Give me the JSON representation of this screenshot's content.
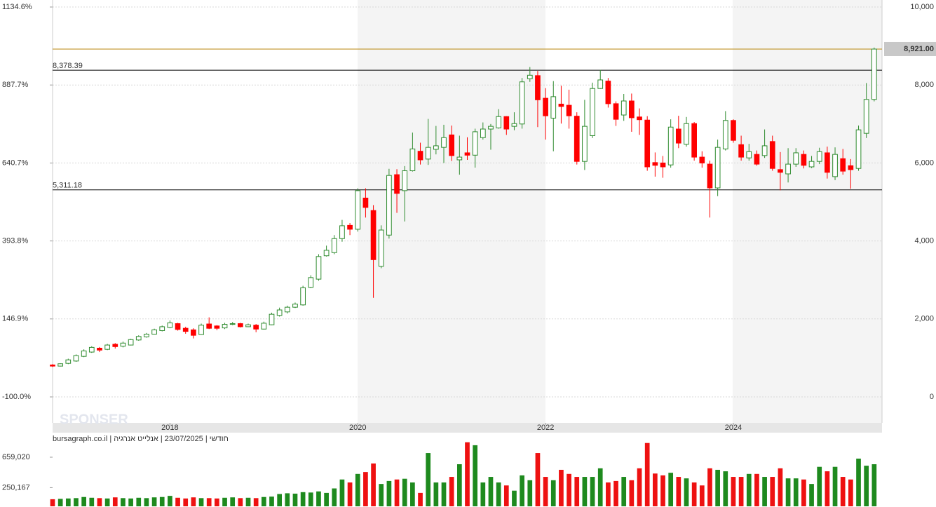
{
  "chart_data": {
    "type": "candlestick",
    "footer": "חודשי | 23/07/2025 | אנלייט אנרגיה | bursagraph.co.il",
    "watermark": "SPONSER",
    "up_color": "#2e8b2e",
    "down_color": "#ff0000",
    "xlim": [
      0,
      106
    ],
    "xticks": [
      {
        "value": 15,
        "label": "2018"
      },
      {
        "value": 39,
        "label": "2020"
      },
      {
        "value": 63,
        "label": "2022"
      },
      {
        "value": 87,
        "label": "2024"
      }
    ],
    "ylim": [
      0,
      10000
    ],
    "yticks": [
      0,
      {
        "value": 2000,
        "label": "2,000"
      },
      {
        "value": 4000,
        "label": "4,000"
      },
      {
        "value": 6000,
        "label": "6,000"
      },
      {
        "value": 8000,
        "label": "8,000"
      },
      {
        "value": 10000,
        "label": "10,000"
      }
    ],
    "y2lim": [
      -100,
      1134.6
    ],
    "y2ticks": [
      {
        "value": -100,
        "label": "-100.0%"
      },
      {
        "value": 146.9,
        "label": "146.9%"
      },
      {
        "value": 393.8,
        "label": "393.8%"
      },
      {
        "value": 640.7,
        "label": "640.7%"
      },
      {
        "value": 887.7,
        "label": "887.7%"
      },
      {
        "value": 1134.6,
        "label": "1134.6%"
      }
    ],
    "grid": true,
    "hlines": [
      {
        "value": 8378.39,
        "label": "8,378.39"
      },
      {
        "value": 5311.18,
        "label": "5,311.18"
      }
    ],
    "last_price": {
      "value": 8921,
      "label": "8,921.00"
    },
    "open": [
      820,
      790,
      860,
      920,
      1040,
      1150,
      1250,
      1220,
      1350,
      1300,
      1330,
      1460,
      1540,
      1610,
      1700,
      1780,
      1880,
      1760,
      1720,
      1600,
      1870,
      1820,
      1770,
      1860,
      1880,
      1800,
      1840,
      1740,
      1850,
      2090,
      2180,
      2300,
      2360,
      2810,
      3020,
      3620,
      3700,
      4060,
      4400,
      4300,
      5100,
      4780,
      3350,
      4150,
      5700,
      5290,
      5800,
      6300,
      6100,
      6350,
      6400,
      6720,
      6080,
      6260,
      6200,
      6650,
      6870,
      6900,
      7190,
      6940,
      7000,
      8160,
      8240,
      7660,
      7150,
      7510,
      7480,
      7200,
      6040,
      6700,
      7910,
      8100,
      7520,
      7230,
      7590,
      7180,
      7100,
      6010,
      6000,
      5950,
      6870,
      6480,
      7010,
      6150,
      5970,
      5360,
      6360,
      7090,
      6470,
      6130,
      6220,
      6190,
      6550,
      5830,
      5720,
      5970,
      6220,
      5900,
      6040,
      6260,
      5650,
      6110,
      5930,
      5860,
      6760,
      7630
    ],
    "high": [
      840,
      860,
      980,
      1090,
      1220,
      1300,
      1280,
      1360,
      1380,
      1420,
      1490,
      1580,
      1640,
      1750,
      1830,
      1960,
      1900,
      1800,
      1760,
      1880,
      2040,
      1840,
      1900,
      1920,
      1900,
      1880,
      1870,
      1930,
      2160,
      2290,
      2340,
      2420,
      2850,
      3120,
      3660,
      3880,
      4150,
      4540,
      4460,
      5350,
      5350,
      4920,
      4400,
      5850,
      5840,
      5920,
      6780,
      6520,
      7130,
      6950,
      6980,
      6960,
      6700,
      6660,
      6880,
      7040,
      7000,
      7380,
      7200,
      7300,
      8180,
      8460,
      8360,
      7920,
      8100,
      7980,
      7880,
      7300,
      7620,
      8060,
      8390,
      8180,
      7580,
      7770,
      7780,
      7400,
      7200,
      6270,
      6180,
      7120,
      7210,
      7180,
      7050,
      6300,
      6060,
      6600,
      7330,
      7120,
      6700,
      6490,
      6320,
      6860,
      6700,
      6280,
      6380,
      6380,
      6320,
      6180,
      6390,
      6420,
      6400,
      6360,
      6100,
      6960,
      8050,
      8960
    ],
    "low": [
      770,
      780,
      840,
      900,
      1020,
      1130,
      1150,
      1200,
      1240,
      1270,
      1320,
      1440,
      1520,
      1600,
      1680,
      1760,
      1700,
      1620,
      1500,
      1590,
      1740,
      1710,
      1740,
      1840,
      1780,
      1790,
      1660,
      1730,
      1840,
      2060,
      2140,
      2280,
      2340,
      2790,
      2980,
      3600,
      3660,
      3980,
      4150,
      4240,
      4600,
      2540,
      3300,
      4060,
      4720,
      4500,
      5780,
      5960,
      5950,
      6220,
      6000,
      6050,
      5700,
      6080,
      5880,
      6600,
      6340,
      6880,
      6720,
      6840,
      6880,
      8080,
      6920,
      6600,
      6300,
      7010,
      6880,
      5960,
      5820,
      6640,
      7900,
      7420,
      6950,
      7080,
      6800,
      6720,
      5800,
      5650,
      5620,
      5880,
      6380,
      6420,
      6060,
      5880,
      4600,
      5150,
      6320,
      6520,
      6060,
      6060,
      5930,
      6130,
      5800,
      5300,
      5500,
      5900,
      5860,
      5870,
      5970,
      5600,
      5560,
      5700,
      5340,
      5800,
      6640,
      7580
    ],
    "close": [
      790,
      850,
      950,
      1060,
      1180,
      1270,
      1200,
      1330,
      1290,
      1380,
      1470,
      1550,
      1610,
      1720,
      1800,
      1900,
      1730,
      1680,
      1580,
      1840,
      1760,
      1760,
      1860,
      1880,
      1800,
      1850,
      1740,
      1890,
      2120,
      2230,
      2300,
      2380,
      2800,
      3060,
      3600,
      3760,
      4060,
      4390,
      4300,
      5290,
      4860,
      3520,
      4280,
      5680,
      5220,
      5800,
      6360,
      6080,
      6400,
      6440,
      6650,
      6190,
      6150,
      6200,
      6800,
      6870,
      6940,
      7190,
      6870,
      7010,
      8080,
      8250,
      7620,
      7210,
      7700,
      7450,
      7210,
      6040,
      6940,
      7910,
      8130,
      7520,
      7120,
      7590,
      7160,
      7110,
      5900,
      5940,
      5900,
      6920,
      6510,
      7010,
      6150,
      6000,
      5360,
      6400,
      7090,
      6580,
      6150,
      6290,
      5970,
      6440,
      5860,
      5760,
      5970,
      6260,
      5940,
      6040,
      6290,
      5760,
      6220,
      5790,
      5830,
      6850,
      7630,
      8921
    ],
    "volume": {
      "ylim": [
        0,
        885000
      ],
      "yticks": [
        {
          "value": 250167,
          "label": "250,167"
        },
        {
          "value": 659020,
          "label": "659,020"
        }
      ],
      "values": [
        95000,
        100000,
        105000,
        110000,
        125000,
        115000,
        110000,
        105000,
        120000,
        110000,
        105000,
        115000,
        110000,
        120000,
        125000,
        140000,
        115000,
        105000,
        120000,
        110000,
        110000,
        105000,
        115000,
        120000,
        110000,
        115000,
        110000,
        125000,
        130000,
        165000,
        175000,
        170000,
        190000,
        185000,
        200000,
        180000,
        240000,
        360000,
        320000,
        435000,
        460000,
        575000,
        300000,
        340000,
        360000,
        370000,
        320000,
        180000,
        715000,
        320000,
        320000,
        395000,
        565000,
        860000,
        820000,
        320000,
        395000,
        320000,
        280000,
        210000,
        415000,
        350000,
        715000,
        395000,
        350000,
        490000,
        435000,
        395000,
        395000,
        395000,
        510000,
        320000,
        340000,
        395000,
        350000,
        510000,
        850000,
        440000,
        415000,
        450000,
        395000,
        375000,
        320000,
        280000,
        510000,
        490000,
        470000,
        395000,
        395000,
        435000,
        435000,
        395000,
        395000,
        510000,
        375000,
        375000,
        360000,
        300000,
        530000,
        470000,
        530000,
        395000,
        360000,
        640000,
        545000,
        565000
      ]
    }
  }
}
